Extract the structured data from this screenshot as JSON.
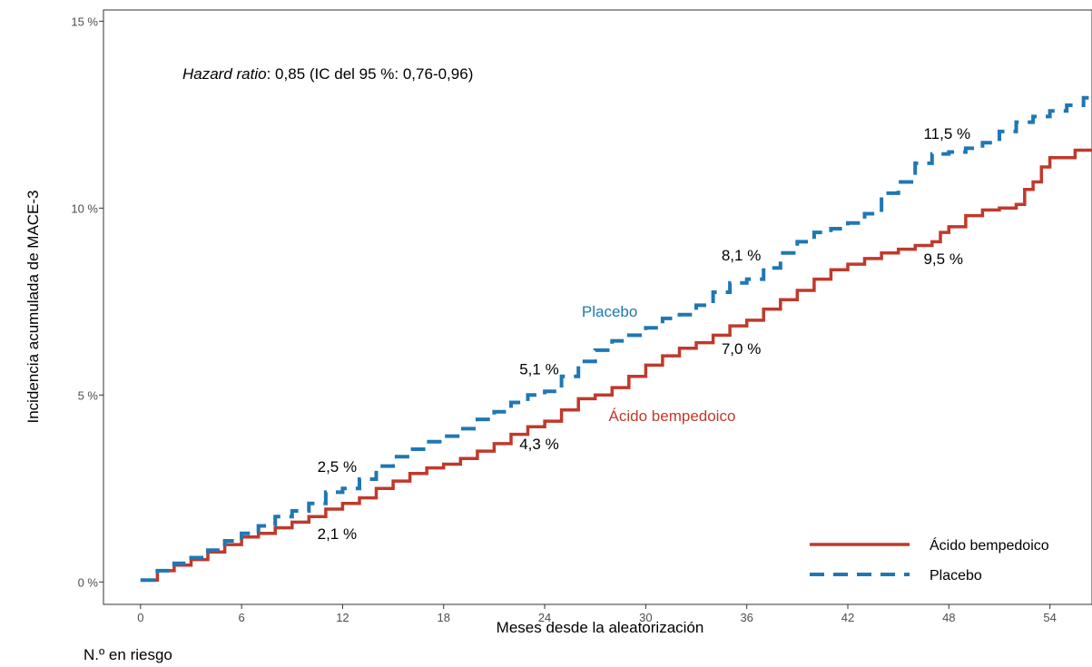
{
  "chart_data": {
    "type": "line",
    "xlabel": "Meses desde la aleatorización",
    "ylabel": "Incidencia acumulada de MACE-3",
    "xlim": [
      -2.2,
      56.5
    ],
    "ylim": [
      -0.6,
      15.3
    ],
    "x_ticks": [
      0,
      6,
      12,
      18,
      24,
      30,
      36,
      42,
      48,
      54
    ],
    "y_ticks": [
      {
        "value": 0,
        "label": "0 %"
      },
      {
        "value": 5,
        "label": "5 %"
      },
      {
        "value": 10,
        "label": "10 %"
      },
      {
        "value": 15,
        "label": "15 %"
      }
    ],
    "grid": false,
    "legend_position": "bottom-right",
    "hazard_ratio": {
      "italic": "Hazard ratio",
      "rest": ": 0,85 (IC del 95 %: 0,76-0,96)"
    },
    "series": [
      {
        "name": "Ácido bempedoico",
        "label": "Ácido bempedoico",
        "color": "#c0392b",
        "style": "solid",
        "x": [
          0,
          1,
          2,
          3,
          4,
          5,
          6,
          7,
          8,
          9,
          10,
          11,
          12,
          13,
          14,
          15,
          16,
          17,
          18,
          19,
          20,
          21,
          22,
          23,
          24,
          25,
          26,
          27,
          28,
          29,
          30,
          31,
          32,
          33,
          34,
          35,
          36,
          37,
          38,
          39,
          40,
          41,
          42,
          43,
          44,
          45,
          46,
          47,
          47.5,
          48,
          49,
          50,
          51,
          52,
          52.5,
          53,
          53.5,
          54,
          55,
          55.5,
          56.5
        ],
        "y": [
          0.05,
          0.3,
          0.45,
          0.6,
          0.8,
          1.0,
          1.2,
          1.3,
          1.45,
          1.6,
          1.75,
          1.95,
          2.1,
          2.25,
          2.5,
          2.7,
          2.9,
          3.05,
          3.15,
          3.3,
          3.5,
          3.7,
          3.95,
          4.15,
          4.3,
          4.6,
          4.9,
          5.0,
          5.2,
          5.5,
          5.8,
          6.05,
          6.25,
          6.4,
          6.6,
          6.85,
          7.0,
          7.3,
          7.55,
          7.8,
          8.1,
          8.35,
          8.5,
          8.65,
          8.8,
          8.9,
          9.0,
          9.1,
          9.35,
          9.5,
          9.8,
          9.95,
          10.0,
          10.1,
          10.5,
          10.7,
          11.1,
          11.35,
          11.35,
          11.55,
          11.55
        ]
      },
      {
        "name": "Placebo",
        "label": "Placebo",
        "color": "#1f77b4",
        "style": "dashed",
        "x": [
          0,
          1,
          2,
          3,
          4,
          5,
          6,
          7,
          8,
          9,
          10,
          11,
          12,
          13,
          14,
          15,
          16,
          17,
          18,
          19,
          20,
          21,
          22,
          23,
          24,
          25,
          26,
          27,
          28,
          29,
          30,
          31,
          32,
          33,
          34,
          35,
          36,
          37,
          38,
          39,
          40,
          41,
          42,
          43,
          44,
          45,
          46,
          47,
          48,
          49,
          50,
          51,
          52,
          53,
          54,
          55,
          56,
          56.5
        ],
        "y": [
          0.05,
          0.3,
          0.5,
          0.65,
          0.85,
          1.1,
          1.3,
          1.5,
          1.75,
          1.9,
          2.1,
          2.4,
          2.5,
          2.75,
          3.1,
          3.35,
          3.55,
          3.75,
          3.9,
          4.1,
          4.35,
          4.55,
          4.8,
          5.0,
          5.1,
          5.5,
          5.9,
          6.2,
          6.45,
          6.6,
          6.8,
          7.05,
          7.15,
          7.4,
          7.75,
          8.0,
          8.1,
          8.4,
          8.8,
          9.1,
          9.35,
          9.45,
          9.6,
          9.85,
          10.4,
          10.7,
          11.2,
          11.45,
          11.5,
          11.6,
          11.75,
          12.05,
          12.3,
          12.45,
          12.6,
          12.75,
          12.95,
          12.95
        ]
      }
    ],
    "point_labels": [
      {
        "series": "Placebo",
        "x": 10.5,
        "y": 2.95,
        "text": "2,5 %"
      },
      {
        "series": "Ácido bempedoico",
        "x": 10.5,
        "y": 1.15,
        "text": "2,1 %"
      },
      {
        "series": "Placebo",
        "x": 22.5,
        "y": 5.55,
        "text": "5,1 %"
      },
      {
        "series": "Ácido bempedoico",
        "x": 22.5,
        "y": 3.55,
        "text": "4,3 %"
      },
      {
        "series": "Placebo",
        "x": 34.5,
        "y": 8.6,
        "text": "8,1 %"
      },
      {
        "series": "Ácido bempedoico",
        "x": 34.5,
        "y": 6.1,
        "text": "7,0 %"
      },
      {
        "series": "Placebo",
        "x": 46.5,
        "y": 11.85,
        "text": "11,5 %"
      },
      {
        "series": "Ácido bempedoico",
        "x": 46.5,
        "y": 8.5,
        "text": "9,5 %"
      }
    ],
    "series_labels": [
      {
        "series": "Placebo",
        "x": 26.2,
        "y": 7.1,
        "text": "Placebo",
        "color": "#1f77b4"
      },
      {
        "series": "Ácido bempedoico",
        "x": 27.8,
        "y": 4.3,
        "text": "Ácido bempedoico",
        "color": "#c0392b"
      }
    ]
  },
  "risk_table": {
    "title": "N.º en riesgo"
  }
}
